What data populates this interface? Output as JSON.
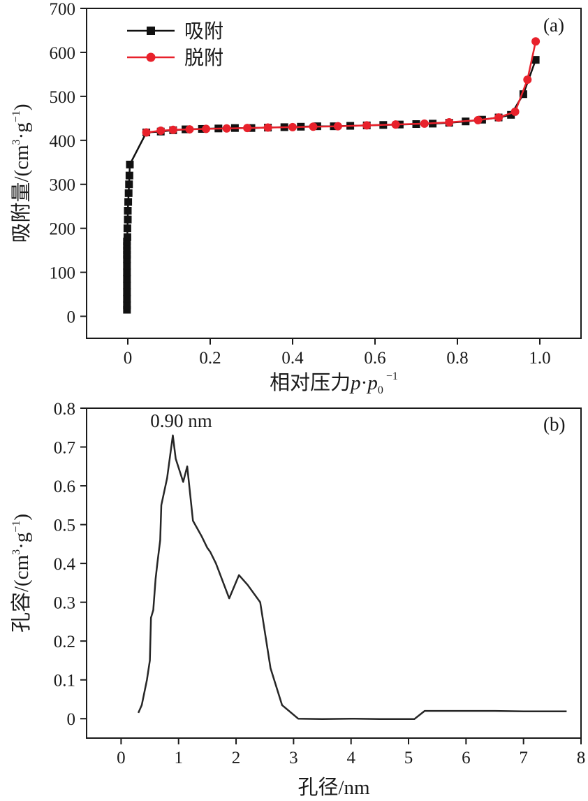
{
  "chart_data": [
    {
      "panel": "(a)",
      "type": "line",
      "xlabel": "相对压力",
      "xlabel_sym": "p",
      "xlabel_dot": "·",
      "xlabel_sym2": "p",
      "xlabel_sub": "0",
      "xlabel_sup": "−1",
      "ylabel_main": "吸附量/(cm",
      "ylabel_sup1": "3",
      "ylabel_mid": "·g",
      "ylabel_sup2": "−1",
      "ylabel_end": ")",
      "xlim": [
        -0.1,
        1.1
      ],
      "ylim": [
        -50,
        700
      ],
      "xticks": [
        0,
        0.2,
        0.4,
        0.6,
        0.8,
        1.0
      ],
      "xtick_labels": [
        "0",
        "0.2",
        "0.4",
        "0.6",
        "0.8",
        "1.0"
      ],
      "yticks": [
        0,
        100,
        200,
        300,
        400,
        500,
        600,
        700
      ],
      "ytick_labels": [
        "0",
        "100",
        "200",
        "300",
        "400",
        "500",
        "600",
        "700"
      ],
      "legend_position": "top-left",
      "series": [
        {
          "name": "吸附",
          "color": "#111111",
          "marker": "square",
          "x": [
            -0.002,
            -0.002,
            -0.002,
            -0.002,
            -0.002,
            -0.002,
            -0.002,
            -0.002,
            -0.002,
            -0.002,
            -0.002,
            -0.002,
            -0.002,
            -0.001,
            -0.001,
            0.0,
            0.0,
            0.001,
            0.002,
            0.003,
            0.004,
            0.005,
            0.045,
            0.08,
            0.11,
            0.14,
            0.18,
            0.22,
            0.26,
            0.3,
            0.34,
            0.38,
            0.42,
            0.46,
            0.5,
            0.54,
            0.58,
            0.62,
            0.66,
            0.7,
            0.74,
            0.78,
            0.82,
            0.86,
            0.9,
            0.93,
            0.96,
            0.99
          ],
          "y": [
            15,
            25,
            40,
            55,
            70,
            85,
            100,
            115,
            130,
            140,
            150,
            160,
            170,
            180,
            200,
            220,
            240,
            260,
            280,
            300,
            320,
            345,
            418,
            420,
            423,
            425,
            426,
            427,
            428,
            428,
            429,
            430,
            431,
            432,
            432,
            433,
            434,
            435,
            436,
            437,
            438,
            440,
            443,
            447,
            452,
            458,
            505,
            583
          ]
        },
        {
          "name": "脱附",
          "color": "#e8212b",
          "marker": "circle",
          "x": [
            0.99,
            0.97,
            0.94,
            0.9,
            0.85,
            0.78,
            0.72,
            0.65,
            0.58,
            0.51,
            0.45,
            0.4,
            0.34,
            0.29,
            0.24,
            0.19,
            0.15,
            0.11,
            0.08,
            0.045
          ],
          "y": [
            625,
            538,
            465,
            452,
            446,
            441,
            438,
            436,
            434,
            432,
            431,
            430,
            429,
            428,
            427,
            426,
            425,
            424,
            422,
            418
          ]
        }
      ]
    },
    {
      "panel": "(b)",
      "type": "line",
      "xlabel": "孔径/nm",
      "ylabel_main": "孔容/(cm",
      "ylabel_sup1": "3",
      "ylabel_mid": "·g",
      "ylabel_sup2": "−1",
      "ylabel_end": ")",
      "xlim": [
        -0.6,
        8
      ],
      "ylim": [
        -0.05,
        0.8
      ],
      "xticks": [
        0,
        1,
        2,
        3,
        4,
        5,
        6,
        7,
        8
      ],
      "xtick_labels": [
        "0",
        "1",
        "2",
        "3",
        "4",
        "5",
        "6",
        "7",
        "8"
      ],
      "yticks": [
        0,
        0.1,
        0.2,
        0.3,
        0.4,
        0.5,
        0.6,
        0.7,
        0.8
      ],
      "ytick_labels": [
        "0",
        "0.1",
        "0.2",
        "0.3",
        "0.4",
        "0.5",
        "0.6",
        "0.7",
        "0.8"
      ],
      "annotation": {
        "text": "0.90 nm",
        "x": 0.9,
        "y": 0.73
      },
      "series": [
        {
          "color": "#262626",
          "x": [
            0.3,
            0.36,
            0.45,
            0.5,
            0.52,
            0.56,
            0.6,
            0.63,
            0.68,
            0.7,
            0.8,
            0.9,
            0.95,
            1.08,
            1.15,
            1.25,
            1.4,
            1.5,
            1.55,
            1.65,
            1.88,
            2.05,
            2.2,
            2.42,
            2.6,
            2.8,
            3.08,
            3.5,
            4.0,
            4.5,
            5.1,
            5.28,
            6.5,
            7.0,
            7.75
          ],
          "y": [
            0.015,
            0.035,
            0.1,
            0.15,
            0.26,
            0.28,
            0.36,
            0.4,
            0.46,
            0.55,
            0.62,
            0.73,
            0.67,
            0.61,
            0.65,
            0.51,
            0.47,
            0.44,
            0.43,
            0.4,
            0.31,
            0.37,
            0.345,
            0.3,
            0.13,
            0.035,
            0.0,
            -0.001,
            0.0,
            -0.001,
            -0.001,
            0.02,
            0.02,
            0.019,
            0.019
          ]
        }
      ]
    }
  ]
}
